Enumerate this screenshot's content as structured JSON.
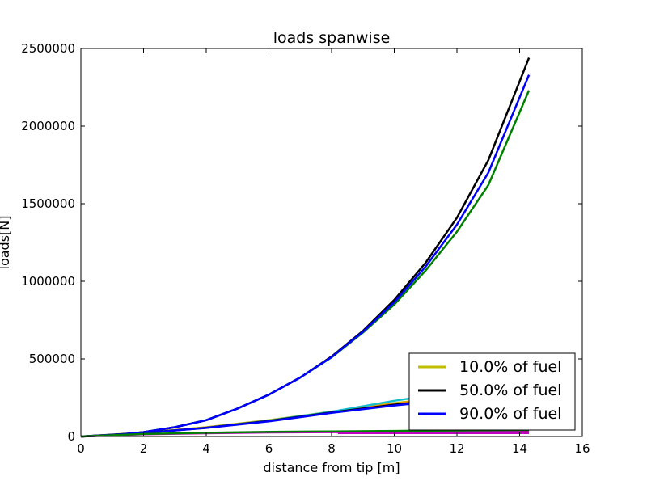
{
  "chart_data": {
    "type": "line",
    "title": "loads spanwise",
    "xlabel": "distance from tip [m]",
    "ylabel": "loads[N]",
    "xlim": [
      0,
      16
    ],
    "ylim": [
      0,
      2500000
    ],
    "xticks": [
      0,
      2,
      4,
      6,
      8,
      10,
      12,
      14,
      16
    ],
    "yticks": [
      0,
      500000,
      1000000,
      1500000,
      2000000,
      2500000
    ],
    "grid": false,
    "legend_position": "lower-right",
    "legend": [
      {
        "label": "10.0% of fuel",
        "color": "#bfbf00"
      },
      {
        "label": "50.0% of fuel",
        "color": "#000000"
      },
      {
        "label": "90.0% of fuel",
        "color": "#0000ff"
      }
    ],
    "series": [
      {
        "color": "#bfbf00",
        "x": [
          0,
          2,
          4,
          6,
          8,
          10,
          12,
          14.3
        ],
        "y": [
          0,
          25000,
          60000,
          105000,
          160000,
          215000,
          260000,
          290000
        ]
      },
      {
        "color": "#ff7f0e",
        "x": [
          0,
          2,
          4,
          6,
          8,
          10,
          12,
          14.3
        ],
        "y": [
          0,
          24000,
          58000,
          103000,
          157000,
          210000,
          255000,
          285000
        ]
      },
      {
        "color": "#17becf",
        "x": [
          0,
          2,
          4,
          6,
          8,
          10,
          12,
          14.3
        ],
        "y": [
          0,
          23000,
          57000,
          102000,
          160000,
          230000,
          290000,
          320000
        ]
      },
      {
        "color": "#000000",
        "x": [
          0,
          2,
          4,
          6,
          8,
          10,
          12,
          14.3
        ],
        "y": [
          0,
          23000,
          56000,
          100000,
          155000,
          205000,
          245000,
          270000
        ]
      },
      {
        "color": "#0000ff",
        "x": [
          0,
          2,
          4,
          6,
          8,
          10,
          12,
          14.3
        ],
        "y": [
          0,
          22000,
          55000,
          98000,
          152000,
          200000,
          240000,
          265000
        ]
      },
      {
        "color": "#008000",
        "x": [
          0,
          1,
          2,
          3,
          4,
          5,
          6,
          7,
          8,
          9,
          10,
          11,
          12,
          13,
          14.3
        ],
        "y": [
          0,
          8000,
          28000,
          60000,
          105000,
          180000,
          270000,
          380000,
          510000,
          670000,
          850000,
          1070000,
          1320000,
          1620000,
          2230000
        ]
      },
      {
        "color": "#000000",
        "x": [
          0,
          1,
          2,
          3,
          4,
          5,
          6,
          7,
          8,
          9,
          10,
          11,
          12,
          13,
          14.3
        ],
        "y": [
          0,
          8000,
          28000,
          60000,
          105000,
          180000,
          270000,
          380000,
          515000,
          680000,
          880000,
          1120000,
          1410000,
          1780000,
          2440000
        ]
      },
      {
        "color": "#0000ff",
        "x": [
          0,
          1,
          2,
          3,
          4,
          5,
          6,
          7,
          8,
          9,
          10,
          11,
          12,
          13,
          14.3
        ],
        "y": [
          0,
          8000,
          28000,
          60000,
          105000,
          180000,
          270000,
          380000,
          512000,
          675000,
          865000,
          1095000,
          1365000,
          1700000,
          2330000
        ]
      },
      {
        "color": "#bf00bf",
        "x": [
          0,
          2,
          4,
          6,
          8,
          10,
          12,
          14.3
        ],
        "y": [
          0,
          14000,
          21000,
          26000,
          28000,
          30000,
          31000,
          32000
        ]
      },
      {
        "color": "#bf00bf",
        "x": [
          8.2,
          10,
          12,
          14.3
        ],
        "y": [
          22000,
          22000,
          22000,
          22000
        ]
      },
      {
        "color": "#008000",
        "x": [
          0,
          2,
          4,
          6,
          8,
          10,
          12,
          14.3
        ],
        "y": [
          0,
          16000,
          24000,
          30000,
          33000,
          36000,
          39000,
          42000
        ]
      }
    ]
  }
}
